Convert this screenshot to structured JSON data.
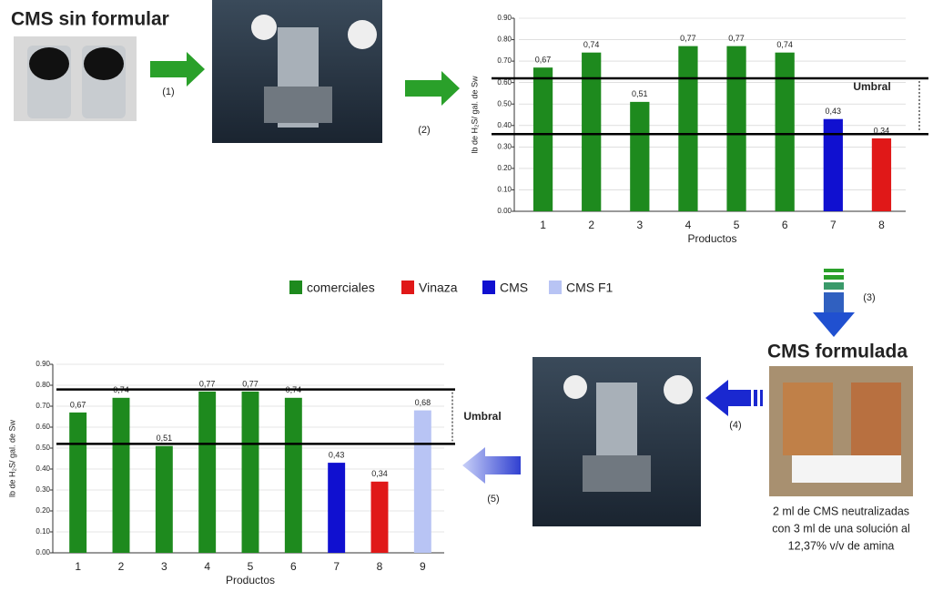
{
  "chart_data": [
    {
      "type": "bar",
      "y_label": "lb de H₂S/ gal. de Sw",
      "x_label": "Productos",
      "annotation": "Umbral",
      "categories": [
        "1",
        "2",
        "3",
        "4",
        "5",
        "6",
        "7",
        "8"
      ],
      "values": [
        0.67,
        0.74,
        0.51,
        0.77,
        0.77,
        0.74,
        0.43,
        0.34
      ],
      "value_labels": [
        "0,67",
        "0,74",
        "0,51",
        "0,77",
        "0,77",
        "0,74",
        "0,43",
        "0,34"
      ],
      "colors": [
        "#1e8a1e",
        "#1e8a1e",
        "#1e8a1e",
        "#1e8a1e",
        "#1e8a1e",
        "#1e8a1e",
        "#1010d0",
        "#e01818"
      ],
      "ylim": [
        0,
        0.9
      ],
      "yticks": [
        {
          "value": 0,
          "label": "0.00"
        },
        {
          "value": 0.1,
          "label": "0.10"
        },
        {
          "value": 0.2,
          "label": "0.20"
        },
        {
          "value": 0.3,
          "label": "0.30"
        },
        {
          "value": 0.4,
          "label": "0.40"
        },
        {
          "value": 0.5,
          "label": "0.50"
        },
        {
          "value": 0.6,
          "label": "0.60"
        },
        {
          "value": 0.7,
          "label": "0.70"
        },
        {
          "value": 0.8,
          "label": "0.80"
        },
        {
          "value": 0.9,
          "label": "0.90"
        }
      ],
      "threshold_lines": [
        0.62,
        0.36
      ]
    },
    {
      "type": "bar",
      "y_label": "lb de H₂S/ gal. de Sw",
      "x_label": "Productos",
      "annotation": "Umbral",
      "categories": [
        "1",
        "2",
        "3",
        "4",
        "5",
        "6",
        "7",
        "8",
        "9"
      ],
      "values": [
        0.67,
        0.74,
        0.51,
        0.77,
        0.77,
        0.74,
        0.43,
        0.34,
        0.68
      ],
      "value_labels": [
        "0,67",
        "0,74",
        "0,51",
        "0,77",
        "0,77",
        "0,74",
        "0,43",
        "0,34",
        "0,68"
      ],
      "colors": [
        "#1e8a1e",
        "#1e8a1e",
        "#1e8a1e",
        "#1e8a1e",
        "#1e8a1e",
        "#1e8a1e",
        "#1010d0",
        "#e01818",
        "#b8c4f4"
      ],
      "ylim": [
        0,
        0.9
      ],
      "yticks": [
        {
          "value": 0,
          "label": "0.00"
        },
        {
          "value": 0.1,
          "label": "0.10"
        },
        {
          "value": 0.2,
          "label": "0.20"
        },
        {
          "value": 0.3,
          "label": "0.30"
        },
        {
          "value": 0.4,
          "label": "0.40"
        },
        {
          "value": 0.5,
          "label": "0.50"
        },
        {
          "value": 0.6,
          "label": "0.60"
        },
        {
          "value": 0.7,
          "label": "0.70"
        },
        {
          "value": 0.8,
          "label": "0.80"
        },
        {
          "value": 0.9,
          "label": "0.90"
        }
      ],
      "threshold_lines": [
        0.78,
        0.52
      ]
    }
  ],
  "diagram": {
    "title_start": "CMS sin formular",
    "title_end": "CMS formulada",
    "steps": [
      "(1)",
      "(2)",
      "(3)",
      "(4)",
      "(5)"
    ],
    "caption": [
      "2 ml de CMS neutralizadas",
      "con 3 ml de una solución al",
      "12,37% v/v de amina"
    ],
    "legend": [
      {
        "name": "comerciales",
        "color": "#1e8a1e"
      },
      {
        "name": "Vinaza",
        "color": "#e01818"
      },
      {
        "name": "CMS",
        "color": "#1010d0"
      },
      {
        "name": "CMS F1",
        "color": "#b8c4f4"
      }
    ]
  }
}
